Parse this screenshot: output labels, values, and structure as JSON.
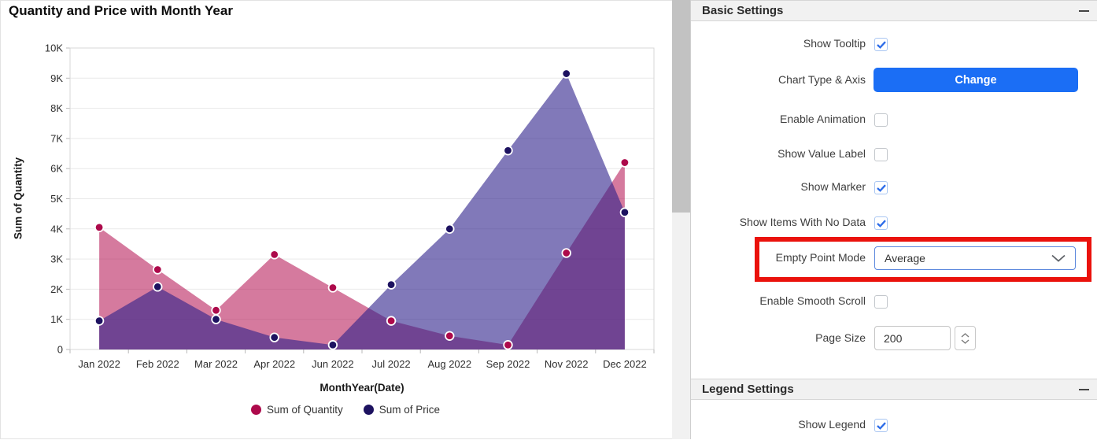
{
  "chart_data": {
    "type": "area",
    "title": "Quantity and Price with Month Year",
    "xlabel": "MonthYear(Date)",
    "ylabel": "Sum of Quantity",
    "categories": [
      "Jan 2022",
      "Feb 2022",
      "Mar 2022",
      "Apr 2022",
      "Jun 2022",
      "Jul 2022",
      "Aug 2022",
      "Sep 2022",
      "Nov 2022",
      "Dec 2022"
    ],
    "series": [
      {
        "name": "Sum of Quantity",
        "color": "#b30d4f",
        "marker_color": "#ad0a4b",
        "fill_opacity": 0.55,
        "values": [
          4050,
          2650,
          1300,
          3150,
          2050,
          950,
          450,
          150,
          3200,
          6200
        ]
      },
      {
        "name": "Sum of Price",
        "color": "#2d1f8a",
        "marker_color": "#1d1260",
        "fill_opacity": 0.6,
        "values": [
          950,
          2080,
          1000,
          400,
          150,
          2150,
          4000,
          6600,
          9150,
          4550
        ]
      }
    ],
    "ylim": [
      0,
      10000
    ],
    "y_tick_step": 1000,
    "y_tick_labels": [
      "0",
      "1K",
      "2K",
      "3K",
      "4K",
      "5K",
      "6K",
      "7K",
      "8K",
      "9K",
      "10K"
    ],
    "grid": true,
    "legend_position": "bottom"
  },
  "settings": {
    "basic_section": {
      "title": "Basic Settings",
      "collapse_icon": "minus"
    },
    "legend_section": {
      "title": "Legend Settings",
      "collapse_icon": "minus"
    },
    "show_tooltip": {
      "label": "Show Tooltip",
      "checked": true
    },
    "chart_type_axis": {
      "label": "Chart Type & Axis",
      "button_label": "Change"
    },
    "enable_animation": {
      "label": "Enable Animation",
      "checked": false
    },
    "show_value_label": {
      "label": "Show Value Label",
      "checked": false
    },
    "show_marker": {
      "label": "Show Marker",
      "checked": true
    },
    "show_items_no_data": {
      "label": "Show Items With No Data",
      "checked": true
    },
    "empty_point_mode": {
      "label": "Empty Point Mode",
      "value": "Average",
      "highlighted": true,
      "highlight_color": "#ea120c"
    },
    "enable_smooth_scroll": {
      "label": "Enable Smooth Scroll",
      "checked": false
    },
    "page_size": {
      "label": "Page Size",
      "value": "200"
    },
    "show_legend": {
      "label": "Show Legend",
      "checked": true
    }
  }
}
